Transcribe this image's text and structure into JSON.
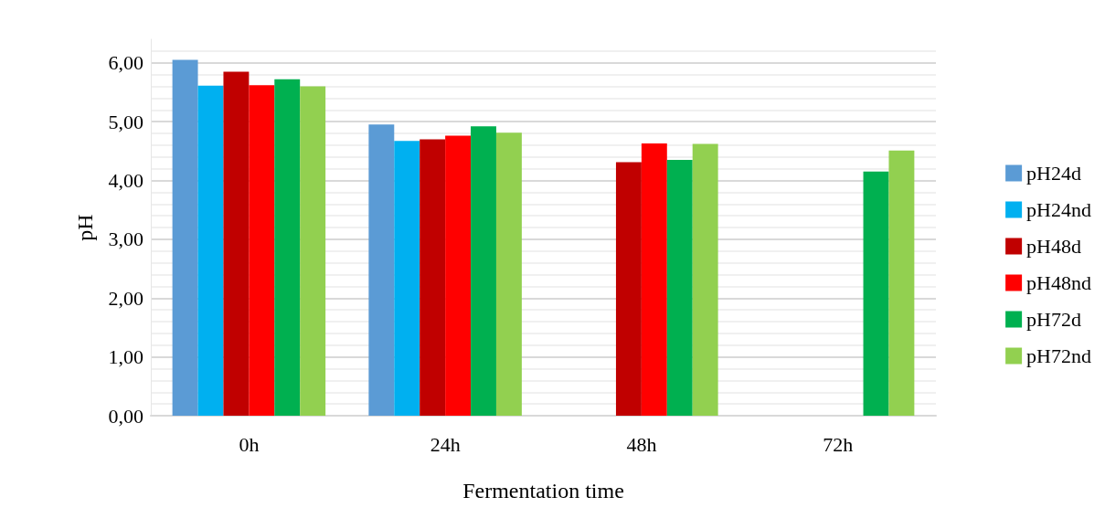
{
  "chart_data": {
    "type": "bar",
    "xlabel": "Fermentation time",
    "ylabel": "pH",
    "categories": [
      "0h",
      "24h",
      "48h",
      "72h"
    ],
    "series": [
      {
        "name": "pH24d",
        "color": "#5b9bd5",
        "values": [
          6.05,
          4.95,
          null,
          null
        ]
      },
      {
        "name": "pH24nd",
        "color": "#00b0f0",
        "values": [
          5.61,
          4.67,
          null,
          null
        ]
      },
      {
        "name": "pH48d",
        "color": "#c00000",
        "values": [
          5.85,
          4.7,
          4.31,
          null
        ]
      },
      {
        "name": "pH48nd",
        "color": "#ff0000",
        "values": [
          5.62,
          4.76,
          4.63,
          null
        ]
      },
      {
        "name": "pH72d",
        "color": "#00b050",
        "values": [
          5.72,
          4.92,
          4.35,
          4.15
        ]
      },
      {
        "name": "pH72nd",
        "color": "#92d050",
        "values": [
          5.6,
          4.81,
          4.62,
          4.51
        ]
      }
    ],
    "ylim": [
      0,
      6.4
    ],
    "yticks": [
      {
        "value": 0,
        "label": "0,00"
      },
      {
        "value": 1,
        "label": "1,00"
      },
      {
        "value": 2,
        "label": "2,00"
      },
      {
        "value": 3,
        "label": "3,00"
      },
      {
        "value": 4,
        "label": "4,00"
      },
      {
        "value": 5,
        "label": "5,00"
      },
      {
        "value": 6,
        "label": "6,00"
      }
    ],
    "grid": "y",
    "legend": "right"
  }
}
